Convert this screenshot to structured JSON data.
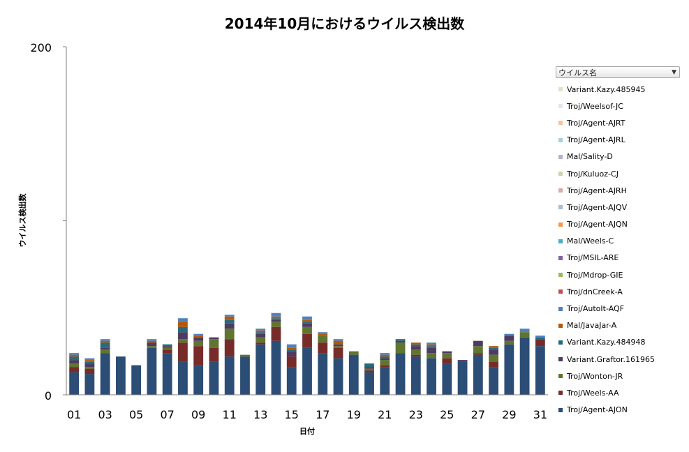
{
  "chart_data": {
    "type": "bar",
    "stacked": true,
    "title": "2014年10月におけるウイルス検出数",
    "xlabel": "日付",
    "ylabel": "ウイルス検出数",
    "ylim": [
      0,
      200
    ],
    "y_tick_labels": [
      "200",
      "0"
    ],
    "x_tick_labels": [
      "01",
      "03",
      "05",
      "07",
      "09",
      "11",
      "13",
      "15",
      "17",
      "19",
      "21",
      "23",
      "25",
      "27",
      "29",
      "31"
    ],
    "grid": false,
    "legend_placement": "right",
    "legend_header": "ウイルス名",
    "categories": [
      "01",
      "02",
      "03",
      "04",
      "05",
      "06",
      "07",
      "08",
      "09",
      "10",
      "11",
      "12",
      "13",
      "14",
      "15",
      "16",
      "17",
      "18",
      "19",
      "20",
      "21",
      "22",
      "23",
      "24",
      "25",
      "26",
      "27",
      "28",
      "29",
      "30",
      "31"
    ],
    "series": [
      {
        "name": "Troj/Agent-AJON",
        "values": [
          13,
          12,
          24,
          22,
          17,
          27,
          24,
          19,
          17,
          19,
          22,
          22,
          29,
          31,
          16,
          27,
          24,
          21,
          23,
          13,
          16,
          24,
          22,
          21,
          18,
          19,
          23,
          16,
          29,
          33,
          28
        ]
      },
      {
        "name": "Troj/Weels-AA",
        "values": [
          3,
          3,
          0,
          0,
          0,
          0,
          2,
          11,
          11,
          8,
          10,
          0,
          1,
          8,
          6,
          8,
          6,
          6,
          0,
          1,
          1,
          0,
          1,
          0,
          3,
          0,
          1,
          3,
          0,
          0,
          4
        ]
      },
      {
        "name": "Troj/Wonton-JR",
        "values": [
          2,
          1,
          2,
          0,
          0,
          1,
          1,
          2,
          3,
          5,
          6,
          1,
          3,
          3,
          0,
          4,
          4,
          1,
          2,
          1,
          3,
          6,
          3,
          3,
          3,
          0,
          4,
          4,
          2,
          3,
          0
        ]
      },
      {
        "name": "Variant.Graftor.161965",
        "values": [
          2,
          2,
          1,
          0,
          0,
          2,
          1,
          4,
          2,
          1,
          3,
          0,
          2,
          1,
          3,
          2,
          0,
          1,
          0,
          1,
          1,
          1,
          2,
          3,
          1,
          1,
          3,
          3,
          3,
          0,
          0
        ]
      },
      {
        "name": "Variant.Kazy.484948",
        "values": [
          2,
          1,
          3,
          0,
          0,
          0,
          1,
          3,
          0,
          0,
          2,
          0,
          1,
          1,
          1,
          1,
          0,
          0,
          0,
          2,
          1,
          1,
          1,
          1,
          0,
          0,
          0,
          1,
          0,
          0,
          1
        ]
      },
      {
        "name": "Mal/JavaJar-A",
        "values": [
          1,
          1,
          1,
          0,
          0,
          1,
          0,
          3,
          1,
          0,
          2,
          0,
          1,
          1,
          1,
          1,
          1,
          2,
          0,
          0,
          1,
          0,
          1,
          1,
          0,
          0,
          0,
          1,
          0,
          0,
          0
        ]
      },
      {
        "name": "Troj/AutoIt-AQF",
        "values": [
          1,
          1,
          1,
          0,
          0,
          1,
          0,
          2,
          1,
          0,
          1,
          0,
          1,
          2,
          2,
          2,
          1,
          1,
          0,
          0,
          1,
          0,
          0,
          1,
          0,
          0,
          0,
          0,
          1,
          2,
          1
        ]
      },
      {
        "name": "Troj/dnCreek-A",
        "values": [
          0,
          0,
          0,
          0,
          0,
          0,
          0,
          0,
          0,
          0,
          0,
          0,
          0,
          0,
          0,
          0,
          0,
          0,
          0,
          0,
          0,
          0,
          0,
          0,
          0,
          0,
          0,
          0,
          0,
          0,
          0
        ]
      },
      {
        "name": "Troj/Mdrop-GIE",
        "values": [
          0,
          0,
          0,
          0,
          0,
          0,
          0,
          0,
          0,
          0,
          0,
          0,
          0,
          0,
          0,
          0,
          0,
          0,
          0,
          0,
          0,
          0,
          0,
          0,
          0,
          0,
          0,
          0,
          0,
          0,
          0
        ]
      },
      {
        "name": "Troj/MSIL-ARE",
        "values": [
          0,
          0,
          0,
          0,
          0,
          0,
          0,
          0,
          0,
          0,
          0,
          0,
          0,
          0,
          0,
          0,
          0,
          0,
          0,
          0,
          0,
          0,
          0,
          0,
          0,
          0,
          0,
          0,
          0,
          0,
          0
        ]
      },
      {
        "name": "Mal/Weels-C",
        "values": [
          0,
          0,
          0,
          0,
          0,
          0,
          0,
          0,
          0,
          0,
          0,
          0,
          0,
          0,
          0,
          0,
          0,
          0,
          0,
          0,
          0,
          0,
          0,
          0,
          0,
          0,
          0,
          0,
          0,
          0,
          0
        ]
      },
      {
        "name": "Troj/Agent-AJQN",
        "values": [
          0,
          0,
          0,
          0,
          0,
          0,
          0,
          0,
          0,
          0,
          0,
          0,
          0,
          0,
          0,
          0,
          0,
          0,
          0,
          0,
          0,
          0,
          0,
          0,
          0,
          0,
          0,
          0,
          0,
          0,
          0
        ]
      },
      {
        "name": "Troj/Agent-AJQV",
        "values": [
          0,
          0,
          0,
          0,
          0,
          0,
          0,
          0,
          0,
          0,
          0,
          0,
          0,
          0,
          0,
          0,
          0,
          0,
          0,
          0,
          0,
          0,
          0,
          0,
          0,
          0,
          0,
          0,
          0,
          0,
          0
        ]
      },
      {
        "name": "Troj/Agent-AJRH",
        "values": [
          0,
          0,
          0,
          0,
          0,
          0,
          0,
          0,
          0,
          0,
          0,
          0,
          0,
          0,
          0,
          0,
          0,
          0,
          0,
          0,
          0,
          0,
          0,
          0,
          0,
          0,
          0,
          0,
          0,
          0,
          0
        ]
      },
      {
        "name": "Troj/Kuluoz-CJ",
        "values": [
          0,
          0,
          0,
          0,
          0,
          0,
          0,
          0,
          0,
          0,
          0,
          0,
          0,
          0,
          0,
          0,
          0,
          0,
          0,
          0,
          0,
          0,
          0,
          0,
          0,
          0,
          0,
          0,
          0,
          0,
          0
        ]
      },
      {
        "name": "Mal/Sality-D",
        "values": [
          0,
          0,
          0,
          0,
          0,
          0,
          0,
          0,
          0,
          0,
          0,
          0,
          0,
          0,
          0,
          0,
          0,
          0,
          0,
          0,
          0,
          0,
          0,
          0,
          0,
          0,
          0,
          0,
          0,
          0,
          0
        ]
      },
      {
        "name": "Troj/Agent-AJRL",
        "values": [
          0,
          0,
          0,
          0,
          0,
          0,
          0,
          0,
          0,
          0,
          0,
          0,
          0,
          0,
          0,
          0,
          0,
          0,
          0,
          0,
          0,
          0,
          0,
          0,
          0,
          0,
          0,
          0,
          0,
          0,
          0
        ]
      },
      {
        "name": "Troj/Agent-AJRT",
        "values": [
          0,
          0,
          0,
          0,
          0,
          0,
          0,
          0,
          0,
          0,
          0,
          0,
          0,
          0,
          0,
          0,
          0,
          0,
          0,
          0,
          0,
          0,
          0,
          0,
          0,
          0,
          0,
          0,
          0,
          0,
          0
        ]
      },
      {
        "name": "Troj/Weelsof-JC",
        "values": [
          0,
          0,
          0,
          0,
          0,
          0,
          0,
          0,
          0,
          0,
          0,
          0,
          0,
          0,
          0,
          0,
          0,
          0,
          0,
          0,
          0,
          0,
          0,
          0,
          0,
          0,
          0,
          0,
          0,
          0,
          0
        ]
      },
      {
        "name": "Variant.Kazy.485945",
        "values": [
          0,
          0,
          0,
          0,
          0,
          0,
          0,
          0,
          0,
          0,
          0,
          0,
          0,
          0,
          0,
          0,
          0,
          0,
          0,
          0,
          0,
          0,
          0,
          0,
          0,
          0,
          0,
          0,
          0,
          0,
          0
        ]
      }
    ],
    "colors": [
      "#2c4d75",
      "#772c2a",
      "#5f7530",
      "#4d3b62",
      "#276a7c",
      "#b65708",
      "#4f81bd",
      "#c0504d",
      "#9bbb59",
      "#8064a2",
      "#4bacc6",
      "#f79646",
      "#aabad7",
      "#d9aaa9",
      "#c6d6ac",
      "#bab0c9",
      "#a9ced9",
      "#f9c19f",
      "#e2e6ef",
      "#d9e6c3"
    ]
  }
}
